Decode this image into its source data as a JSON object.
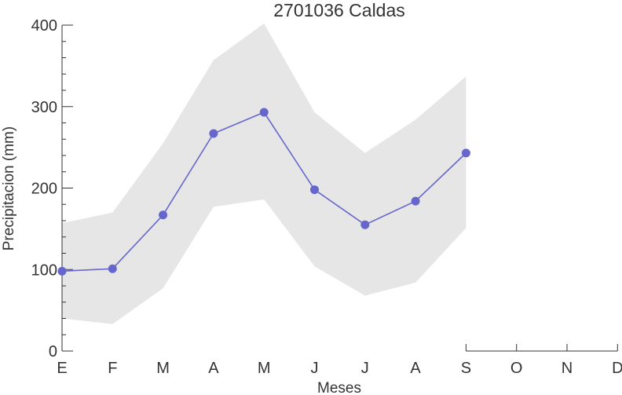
{
  "chart_data": {
    "type": "line",
    "title": "2701036 Caldas",
    "xlabel": "Meses",
    "ylabel": "Precipitacion (mm)",
    "categories": [
      "E",
      "F",
      "M",
      "A",
      "M",
      "J",
      "J",
      "A",
      "S",
      "O",
      "N",
      "D"
    ],
    "ylim": [
      0,
      400
    ],
    "yticks": [
      0,
      100,
      200,
      300,
      400
    ],
    "grid": false,
    "series": [
      {
        "values": [
          98,
          101,
          167,
          267,
          293,
          198,
          155,
          184,
          243,
          null,
          null,
          null
        ],
        "lower": [
          40,
          33,
          77,
          177,
          186,
          104,
          68,
          84,
          151,
          null,
          null,
          null
        ],
        "upper": [
          157,
          170,
          255,
          357,
          402,
          293,
          243,
          284,
          337,
          null,
          null,
          null
        ]
      }
    ],
    "colors": {
      "line": "#6666cc",
      "marker": "#6666cc",
      "band": "#e6e6e6",
      "axis": "#333333"
    }
  }
}
